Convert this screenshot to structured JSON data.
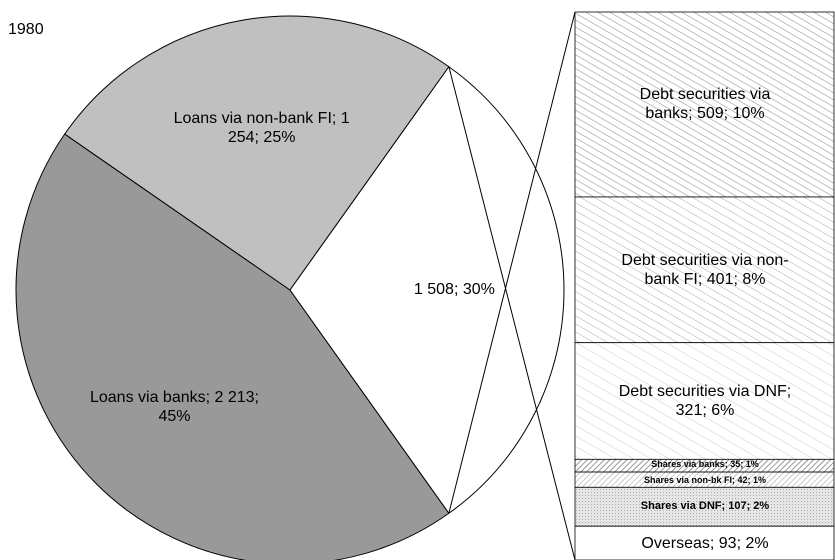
{
  "chart_data": {
    "type": "bar-of-pie",
    "title": "1980",
    "pie": {
      "values": [
        2213,
        1254,
        1508
      ],
      "value_labels": [
        "Loans via banks; 2 213; 45%",
        "Loans via non-bank FI; 1 254; 25%",
        "1 508; 30%"
      ],
      "colors": [
        "#999999",
        "#c0c0c0",
        "#ffffff"
      ]
    },
    "bar": {
      "values": [
        509,
        401,
        321,
        35,
        42,
        107,
        93
      ],
      "value_labels": [
        "Debt securities via banks; 509; 10%",
        "Debt securities via non-bank FI; 401; 8%",
        "Debt securities via DNF; 321; 6%",
        "Shares via banks; 35; 1%",
        "Shares via non-bk FI; 42; 1%",
        "Shares via DNF; 107; 2%",
        "Overseas; 93; 2%"
      ]
    }
  }
}
